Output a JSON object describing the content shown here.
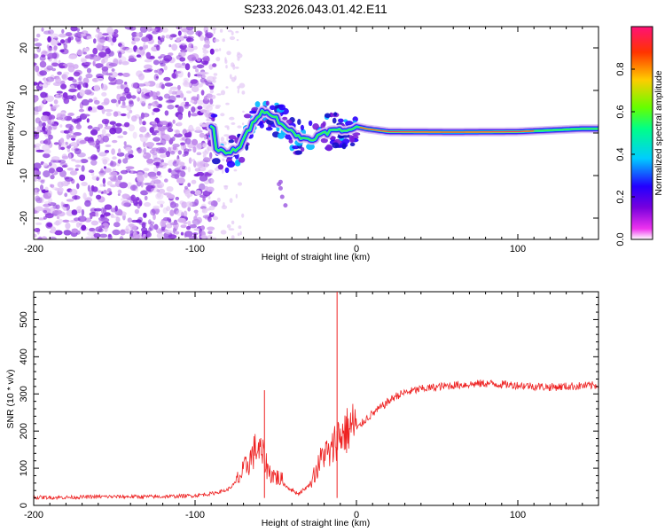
{
  "title": "S233.2026.043.01.42.E11",
  "chart_data": [
    {
      "type": "heatmap",
      "xlabel": "Height of straight line (km)",
      "ylabel": "Frequency (Hz)",
      "xlim": [
        -200,
        150
      ],
      "ylim": [
        -25,
        25
      ],
      "xticks": [
        -200,
        -100,
        0,
        100
      ],
      "yticks": [
        -20,
        -10,
        0,
        10,
        20
      ],
      "colorbar": {
        "label": "Normalized spectral amplitude",
        "range": [
          0,
          1
        ],
        "ticks": [
          0.0,
          0.2,
          0.4,
          0.6,
          0.8
        ],
        "tick_labels": [
          "0.0",
          "0.2",
          "0.4",
          "0.6",
          "0.8"
        ],
        "colormap": [
          "#ffffff",
          "#ee33ee",
          "#7700dd",
          "#2200ff",
          "#00ccff",
          "#00ff88",
          "#66ff00",
          "#ffcc00",
          "#ff3300",
          "#ff1177"
        ]
      },
      "ridge": {
        "description_points": [
          [
            -88,
            -3.5
          ],
          [
            -80,
            -5
          ],
          [
            -72,
            -3
          ],
          [
            -66,
            1
          ],
          [
            -62,
            4
          ],
          [
            -56,
            5.5
          ],
          [
            -50,
            3.5
          ],
          [
            -44,
            1.5
          ],
          [
            -38,
            -0.5
          ],
          [
            -30,
            -1.5
          ],
          [
            -22,
            -0.5
          ],
          [
            -16,
            0.5
          ],
          [
            -8,
            0.5
          ],
          [
            0,
            1.5
          ],
          [
            6,
            1
          ],
          [
            20,
            0.3
          ],
          [
            60,
            0.2
          ],
          [
            100,
            0.3
          ],
          [
            140,
            1
          ]
        ]
      }
    },
    {
      "type": "line",
      "xlabel": "Height of straight line (km)",
      "ylabel": "SNR (10 * v/v)",
      "xlim": [
        -200,
        150
      ],
      "ylim": [
        0,
        575
      ],
      "xticks": [
        -200,
        -100,
        0,
        100
      ],
      "yticks": [
        0,
        100,
        200,
        300,
        400,
        500
      ],
      "color": "#ee2222",
      "series": [
        {
          "name": "SNR",
          "x": [
            -200,
            -180,
            -160,
            -140,
            -120,
            -100,
            -90,
            -80,
            -72,
            -66,
            -62,
            -58,
            -54,
            -50,
            -46,
            -42,
            -36,
            -30,
            -24,
            -20,
            -16,
            -13,
            -10,
            -6,
            0,
            6,
            12,
            18,
            24,
            30,
            40,
            60,
            80,
            100,
            120,
            150
          ],
          "y": [
            20,
            20,
            22,
            22,
            22,
            25,
            30,
            40,
            70,
            110,
            140,
            120,
            80,
            70,
            60,
            45,
            30,
            50,
            90,
            130,
            120,
            160,
            170,
            180,
            200,
            230,
            250,
            270,
            290,
            300,
            310,
            320,
            325,
            320,
            315,
            320
          ]
        }
      ],
      "annotations": [
        {
          "x": -57,
          "y": 310,
          "note": "spike"
        },
        {
          "x": -12,
          "y": 575,
          "note": "spike"
        }
      ]
    }
  ]
}
